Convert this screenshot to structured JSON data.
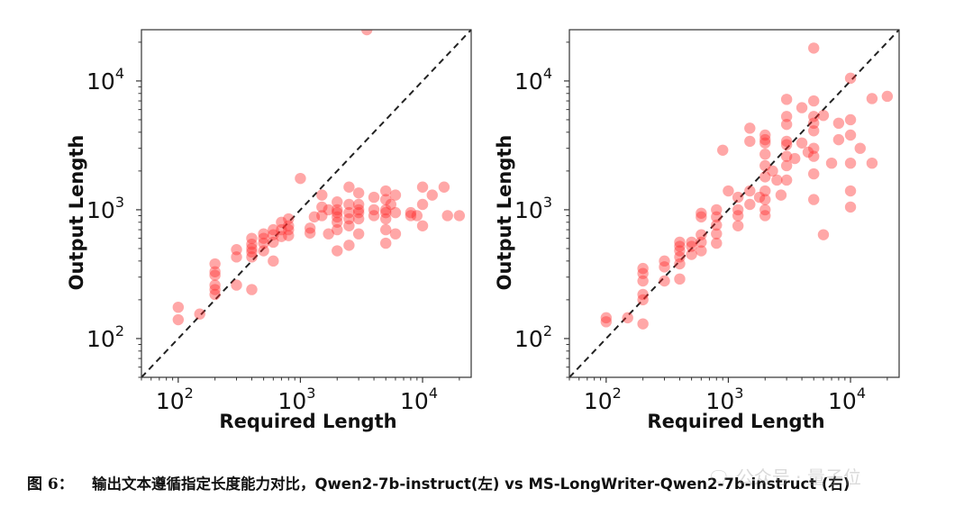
{
  "caption": {
    "number": "图 6：",
    "text": "输出文本遵循指定长度能力对比，Qwen2-7b-instruct(左) vs MS-LongWriter-Qwen2-7b-instruct (右)"
  },
  "watermark": {
    "text": "公众号 · 量子位",
    "icon": "wechat-icon"
  },
  "colors": {
    "point": "#ff2d2d",
    "diagonal": "#222222",
    "frame": "#333333"
  },
  "chart_data": [
    {
      "type": "scatter",
      "xlabel": "Required Length",
      "ylabel": "Output Length",
      "xscale": "log",
      "yscale": "log",
      "xlim": [
        50,
        25000
      ],
      "ylim": [
        50,
        25000
      ],
      "xticks": [
        {
          "value": 100,
          "label": "10",
          "exp": "2"
        },
        {
          "value": 1000,
          "label": "10",
          "exp": "3"
        },
        {
          "value": 10000,
          "label": "10",
          "exp": "4"
        }
      ],
      "yticks": [
        {
          "value": 100,
          "label": "10",
          "exp": "2"
        },
        {
          "value": 1000,
          "label": "10",
          "exp": "3"
        },
        {
          "value": 10000,
          "label": "10",
          "exp": "4"
        }
      ],
      "reference_line": "y=x",
      "points": [
        [
          100,
          175
        ],
        [
          100,
          140
        ],
        [
          150,
          155
        ],
        [
          200,
          380
        ],
        [
          200,
          330
        ],
        [
          200,
          310
        ],
        [
          200,
          260
        ],
        [
          200,
          240
        ],
        [
          200,
          220
        ],
        [
          300,
          490
        ],
        [
          300,
          430
        ],
        [
          300,
          260
        ],
        [
          400,
          600
        ],
        [
          400,
          540
        ],
        [
          400,
          500
        ],
        [
          400,
          470
        ],
        [
          400,
          430
        ],
        [
          400,
          240
        ],
        [
          500,
          650
        ],
        [
          500,
          600
        ],
        [
          500,
          550
        ],
        [
          500,
          480
        ],
        [
          600,
          700
        ],
        [
          600,
          640
        ],
        [
          600,
          560
        ],
        [
          600,
          400
        ],
        [
          700,
          800
        ],
        [
          700,
          700
        ],
        [
          700,
          620
        ],
        [
          800,
          850
        ],
        [
          800,
          750
        ],
        [
          800,
          700
        ],
        [
          800,
          630
        ],
        [
          1000,
          1750
        ],
        [
          1200,
          720
        ],
        [
          1200,
          660
        ],
        [
          1300,
          880
        ],
        [
          1500,
          1300
        ],
        [
          1500,
          1050
        ],
        [
          1500,
          900
        ],
        [
          1700,
          1000
        ],
        [
          1700,
          650
        ],
        [
          2000,
          1150
        ],
        [
          2000,
          1000
        ],
        [
          2000,
          950
        ],
        [
          2000,
          880
        ],
        [
          2000,
          800
        ],
        [
          2000,
          700
        ],
        [
          2000,
          480
        ],
        [
          2500,
          1500
        ],
        [
          2500,
          1100
        ],
        [
          2500,
          950
        ],
        [
          2500,
          850
        ],
        [
          2500,
          750
        ],
        [
          2500,
          530
        ],
        [
          3000,
          1350
        ],
        [
          3000,
          1100
        ],
        [
          3000,
          1000
        ],
        [
          3000,
          950
        ],
        [
          3000,
          850
        ],
        [
          3000,
          650
        ],
        [
          3500,
          25000
        ],
        [
          4000,
          1250
        ],
        [
          4000,
          1000
        ],
        [
          4000,
          900
        ],
        [
          5000,
          1400
        ],
        [
          5000,
          1200
        ],
        [
          5000,
          1000
        ],
        [
          5000,
          950
        ],
        [
          5000,
          850
        ],
        [
          5000,
          700
        ],
        [
          5000,
          550
        ],
        [
          5500,
          1100
        ],
        [
          6000,
          1300
        ],
        [
          6000,
          950
        ],
        [
          6000,
          650
        ],
        [
          8000,
          900
        ],
        [
          8000,
          950
        ],
        [
          9000,
          900
        ],
        [
          10000,
          1500
        ],
        [
          10000,
          1100
        ],
        [
          10000,
          750
        ],
        [
          12000,
          1300
        ],
        [
          15000,
          1500
        ],
        [
          16000,
          900
        ],
        [
          20000,
          900
        ]
      ]
    },
    {
      "type": "scatter",
      "xlabel": "Required Length",
      "ylabel": "Output Length",
      "xscale": "log",
      "yscale": "log",
      "xlim": [
        50,
        25000
      ],
      "ylim": [
        50,
        25000
      ],
      "xticks": [
        {
          "value": 100,
          "label": "10",
          "exp": "2"
        },
        {
          "value": 1000,
          "label": "10",
          "exp": "3"
        },
        {
          "value": 10000,
          "label": "10",
          "exp": "4"
        }
      ],
      "yticks": [
        {
          "value": 100,
          "label": "10",
          "exp": "2"
        },
        {
          "value": 1000,
          "label": "10",
          "exp": "3"
        },
        {
          "value": 10000,
          "label": "10",
          "exp": "4"
        }
      ],
      "reference_line": "y=x",
      "points": [
        [
          100,
          145
        ],
        [
          100,
          135
        ],
        [
          150,
          145
        ],
        [
          200,
          350
        ],
        [
          200,
          320
        ],
        [
          200,
          280
        ],
        [
          200,
          220
        ],
        [
          200,
          200
        ],
        [
          200,
          130
        ],
        [
          300,
          400
        ],
        [
          300,
          360
        ],
        [
          300,
          280
        ],
        [
          400,
          560
        ],
        [
          400,
          520
        ],
        [
          400,
          480
        ],
        [
          400,
          430
        ],
        [
          400,
          380
        ],
        [
          400,
          290
        ],
        [
          500,
          560
        ],
        [
          500,
          520
        ],
        [
          500,
          450
        ],
        [
          600,
          940
        ],
        [
          600,
          880
        ],
        [
          600,
          640
        ],
        [
          600,
          560
        ],
        [
          600,
          480
        ],
        [
          800,
          1000
        ],
        [
          800,
          880
        ],
        [
          800,
          760
        ],
        [
          800,
          650
        ],
        [
          800,
          550
        ],
        [
          900,
          2900
        ],
        [
          1000,
          1400
        ],
        [
          1200,
          1250
        ],
        [
          1200,
          1000
        ],
        [
          1200,
          900
        ],
        [
          1200,
          750
        ],
        [
          1500,
          4300
        ],
        [
          1500,
          3400
        ],
        [
          1500,
          1400
        ],
        [
          1500,
          1100
        ],
        [
          1800,
          1250
        ],
        [
          2000,
          3800
        ],
        [
          2000,
          3500
        ],
        [
          2000,
          3300
        ],
        [
          2000,
          2700
        ],
        [
          2000,
          2200
        ],
        [
          2000,
          1800
        ],
        [
          2000,
          1400
        ],
        [
          2000,
          1200
        ],
        [
          2000,
          1000
        ],
        [
          2000,
          900
        ],
        [
          2300,
          2000
        ],
        [
          2500,
          1700
        ],
        [
          2700,
          1300
        ],
        [
          3000,
          7200
        ],
        [
          3000,
          5300
        ],
        [
          3000,
          4600
        ],
        [
          3000,
          3400
        ],
        [
          3000,
          3200
        ],
        [
          3000,
          2600
        ],
        [
          3000,
          2200
        ],
        [
          3000,
          1700
        ],
        [
          3500,
          2500
        ],
        [
          4000,
          6200
        ],
        [
          4000,
          3300
        ],
        [
          4500,
          2800
        ],
        [
          5000,
          18000
        ],
        [
          5000,
          7000
        ],
        [
          5000,
          5300
        ],
        [
          5000,
          4700
        ],
        [
          5000,
          4100
        ],
        [
          5000,
          3000
        ],
        [
          5000,
          2600
        ],
        [
          5000,
          1900
        ],
        [
          5000,
          1200
        ],
        [
          6000,
          5400
        ],
        [
          6000,
          640
        ],
        [
          7000,
          2300
        ],
        [
          8000,
          4700
        ],
        [
          8000,
          3500
        ],
        [
          10000,
          10500
        ],
        [
          10000,
          5000
        ],
        [
          10000,
          3800
        ],
        [
          10000,
          2300
        ],
        [
          10000,
          1400
        ],
        [
          10000,
          1050
        ],
        [
          12000,
          3000
        ],
        [
          15000,
          7300
        ],
        [
          15000,
          2300
        ],
        [
          20000,
          7600
        ]
      ]
    }
  ]
}
